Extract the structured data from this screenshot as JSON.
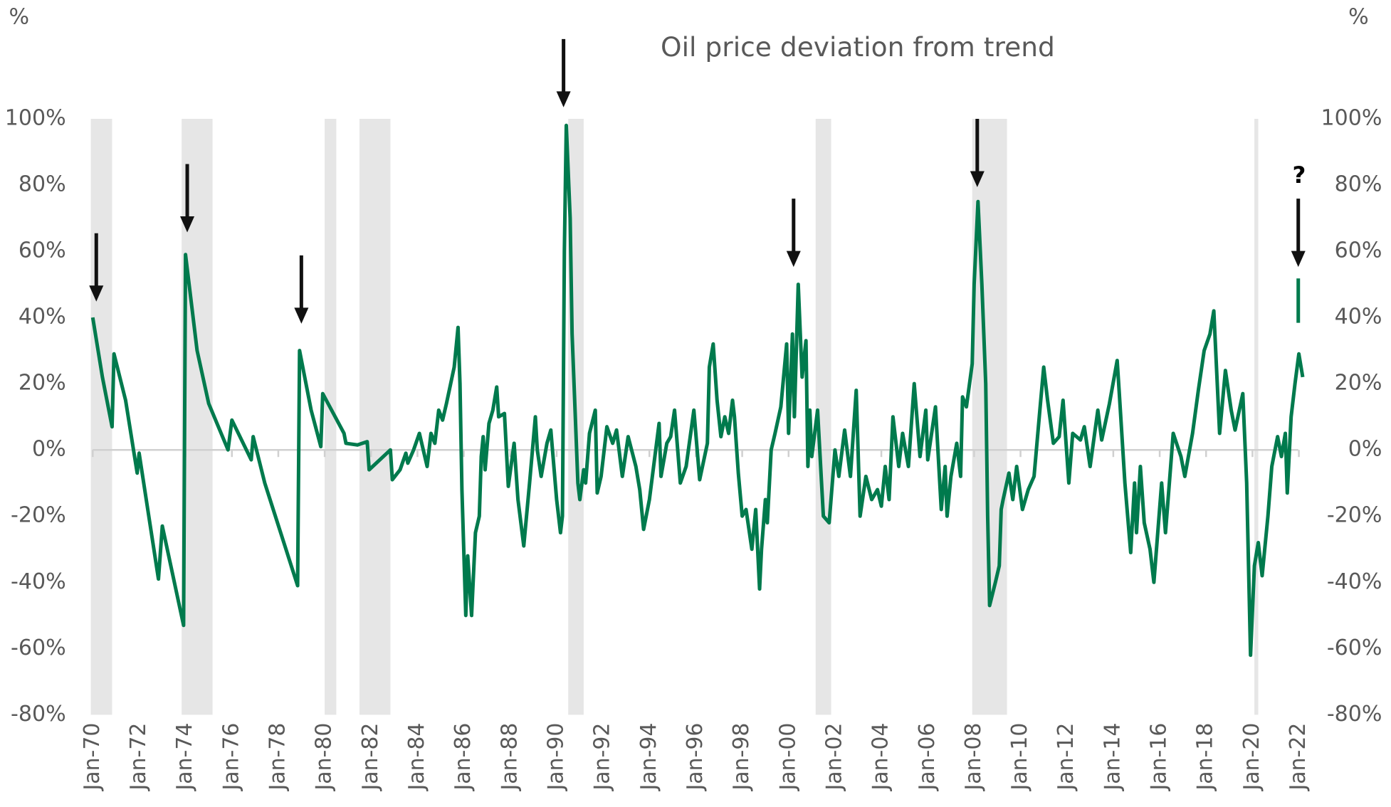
{
  "chart_data": {
    "type": "line",
    "title": "Oil price deviation from trend",
    "y_label": "%",
    "y2_label": "%",
    "annotations": [
      "?"
    ],
    "xlim": [
      "1970-01",
      "2022-03"
    ],
    "ylim": [
      -80,
      100
    ],
    "yticks": [
      {
        "value": -80,
        "label": "-80%"
      },
      {
        "value": -60,
        "label": "-60%"
      },
      {
        "value": -40,
        "label": "-40%"
      },
      {
        "value": -20,
        "label": "-20%"
      },
      {
        "value": 0,
        "label": "0%"
      },
      {
        "value": 20,
        "label": "20%"
      },
      {
        "value": 40,
        "label": "40%"
      },
      {
        "value": 60,
        "label": "60%"
      },
      {
        "value": 80,
        "label": "80%"
      },
      {
        "value": 100,
        "label": "100%"
      }
    ],
    "xticks": [
      {
        "value": "1970-01",
        "label": "Jan-70"
      },
      {
        "value": "1972-01",
        "label": "Jan-72"
      },
      {
        "value": "1974-01",
        "label": "Jan-74"
      },
      {
        "value": "1976-01",
        "label": "Jan-76"
      },
      {
        "value": "1978-01",
        "label": "Jan-78"
      },
      {
        "value": "1980-01",
        "label": "Jan-80"
      },
      {
        "value": "1982-01",
        "label": "Jan-82"
      },
      {
        "value": "1984-01",
        "label": "Jan-84"
      },
      {
        "value": "1986-01",
        "label": "Jan-86"
      },
      {
        "value": "1988-01",
        "label": "Jan-88"
      },
      {
        "value": "1990-01",
        "label": "Jan-90"
      },
      {
        "value": "1992-01",
        "label": "Jan-92"
      },
      {
        "value": "1994-01",
        "label": "Jan-94"
      },
      {
        "value": "1996-01",
        "label": "Jan-96"
      },
      {
        "value": "1998-01",
        "label": "Jan-98"
      },
      {
        "value": "2000-01",
        "label": "Jan-00"
      },
      {
        "value": "2002-01",
        "label": "Jan-02"
      },
      {
        "value": "2004-01",
        "label": "Jan-04"
      },
      {
        "value": "2006-01",
        "label": "Jan-06"
      },
      {
        "value": "2008-01",
        "label": "Jan-08"
      },
      {
        "value": "2010-01",
        "label": "Jan-10"
      },
      {
        "value": "2012-01",
        "label": "Jan-12"
      },
      {
        "value": "2014-01",
        "label": "Jan-14"
      },
      {
        "value": "2016-01",
        "label": "Jan-16"
      },
      {
        "value": "2018-01",
        "label": "Jan-18"
      },
      {
        "value": "2020-01",
        "label": "Jan-20"
      },
      {
        "value": "2022-01",
        "label": "Jan-22"
      }
    ],
    "recessions": [
      [
        "1969-12",
        "1970-11"
      ],
      [
        "1973-11",
        "1975-03"
      ],
      [
        "1980-01",
        "1980-07"
      ],
      [
        "1981-07",
        "1982-11"
      ],
      [
        "1990-07",
        "1991-03"
      ],
      [
        "2001-03",
        "2001-11"
      ],
      [
        "2007-12",
        "2009-06"
      ],
      [
        "2020-02",
        "2020-04"
      ]
    ],
    "recession_color": "#e6e6e6",
    "series": [
      {
        "color": "#007a4d",
        "x": [
          "1970-01",
          "1970-06",
          "1970-11",
          "1970-12",
          "1971-06",
          "1971-12",
          "1972-01",
          "1972-11",
          "1973-01",
          "1973-12",
          "1974-01",
          "1974-07",
          "1975-01",
          "1975-11",
          "1976-01",
          "1976-11",
          "1976-12",
          "1977-06",
          "1978-11",
          "1978-12",
          "1979-06",
          "1979-11",
          "1979-12",
          "1980-11",
          "1980-12",
          "1981-06",
          "1981-11",
          "1981-12",
          "1982-11",
          "1982-12",
          "1983-04",
          "1983-07",
          "1983-08",
          "1983-11",
          "1984-02",
          "1984-06",
          "1984-08",
          "1984-10",
          "1984-12",
          "1985-02",
          "1985-04",
          "1985-08",
          "1985-10",
          "1985-11",
          "1985-12",
          "1986-02",
          "1986-03",
          "1986-05",
          "1986-07",
          "1986-09",
          "1986-10",
          "1986-11",
          "1986-12",
          "1987-02",
          "1987-04",
          "1987-06",
          "1987-07",
          "1987-10",
          "1987-12",
          "1988-03",
          "1988-05",
          "1988-08",
          "1988-11",
          "1989-02",
          "1989-03",
          "1989-05",
          "1989-08",
          "1989-10",
          "1990-01",
          "1990-03",
          "1990-04",
          "1990-05",
          "1990-06",
          "1990-08",
          "1990-09",
          "1990-12",
          "1991-01",
          "1991-03",
          "1991-04",
          "1991-06",
          "1991-09",
          "1991-10",
          "1991-12",
          "1992-03",
          "1992-06",
          "1992-08",
          "1992-11",
          "1993-02",
          "1993-06",
          "1993-08",
          "1993-10",
          "1994-01",
          "1994-06",
          "1994-07",
          "1994-10",
          "1994-12",
          "1995-02",
          "1995-05",
          "1995-08",
          "1995-12",
          "1996-03",
          "1996-07",
          "1996-08",
          "1996-10",
          "1996-12",
          "1997-02",
          "1997-04",
          "1997-06",
          "1997-08",
          "1997-09",
          "1997-11",
          "1998-01",
          "1998-03",
          "1998-06",
          "1998-08",
          "1998-10",
          "1998-11",
          "1999-01",
          "1999-02",
          "1999-04",
          "1999-06",
          "1999-09",
          "1999-12",
          "2000-01",
          "2000-03",
          "2000-04",
          "2000-06",
          "2000-08",
          "2000-10",
          "2000-11",
          "2000-12",
          "2001-01",
          "2001-04",
          "2001-07",
          "2001-10",
          "2002-01",
          "2002-03",
          "2002-06",
          "2002-09",
          "2002-12",
          "2003-02",
          "2003-05",
          "2003-08",
          "2003-11",
          "2004-01",
          "2004-03",
          "2004-05",
          "2004-07",
          "2004-10",
          "2004-12",
          "2005-03",
          "2005-06",
          "2005-09",
          "2005-12",
          "2006-01",
          "2006-05",
          "2006-08",
          "2006-10",
          "2006-11",
          "2007-01",
          "2007-04",
          "2007-06",
          "2007-07",
          "2007-09",
          "2007-12",
          "2008-01",
          "2008-03",
          "2008-05",
          "2008-07",
          "2008-08",
          "2008-09",
          "2008-12",
          "2009-02",
          "2009-03",
          "2009-04",
          "2009-07",
          "2009-09",
          "2009-11",
          "2010-02",
          "2010-05",
          "2010-08",
          "2010-11",
          "2011-01",
          "2011-03",
          "2011-06",
          "2011-09",
          "2011-11",
          "2012-02",
          "2012-04",
          "2012-08",
          "2012-10",
          "2013-01",
          "2013-05",
          "2013-07",
          "2013-11",
          "2014-03",
          "2014-04",
          "2014-07",
          "2014-10",
          "2014-12",
          "2015-01",
          "2015-03",
          "2015-05",
          "2015-08",
          "2015-10",
          "2016-02",
          "2016-04",
          "2016-08",
          "2016-12",
          "2017-02",
          "2017-06",
          "2017-09",
          "2017-12",
          "2018-03",
          "2018-05",
          "2018-08",
          "2018-11",
          "2019-02",
          "2019-04",
          "2019-08",
          "2019-10",
          "2019-12",
          "2020-02",
          "2020-04",
          "2020-06",
          "2020-09",
          "2020-11",
          "2021-02",
          "2021-04",
          "2021-06",
          "2021-07",
          "2021-09",
          "2021-11",
          "2022-01",
          "2022-03"
        ],
        "values": [
          40,
          22,
          7,
          29,
          15,
          -7,
          -1,
          -39,
          -23,
          -53,
          59,
          30,
          14,
          0,
          9,
          -3,
          4,
          -10,
          -41,
          30,
          12,
          1,
          17,
          5,
          2,
          1.5,
          2.5,
          -6,
          0,
          -9,
          -6,
          -1,
          -4,
          0,
          5,
          -5,
          5,
          2,
          12,
          9,
          14,
          25,
          37,
          20,
          -12,
          -50,
          -32,
          -50,
          -25,
          -20,
          -2,
          4,
          -6,
          8,
          12,
          19,
          10,
          11,
          -11,
          2,
          -15,
          -29,
          -10,
          10,
          0,
          -8,
          2,
          6,
          -15,
          -25,
          -20,
          60,
          98,
          70,
          35,
          -10,
          -15,
          -6,
          -10,
          5,
          12,
          -13,
          -8,
          7,
          2,
          6,
          -8,
          4,
          -5,
          -12,
          -24,
          -15,
          8,
          -8,
          2,
          4,
          12,
          -10,
          -5,
          12,
          -9,
          2,
          25,
          32,
          15,
          4,
          10,
          5,
          15,
          10,
          -7,
          -20,
          -18,
          -30,
          -18,
          -42,
          -30,
          -15,
          -22,
          0,
          5,
          13,
          32,
          5,
          35,
          10,
          50,
          22,
          33,
          -5,
          12,
          -2,
          12,
          -20,
          -22,
          0,
          -8,
          6,
          -8,
          18,
          -20,
          -8,
          -15,
          -12,
          -17,
          -5,
          -15,
          10,
          -5,
          5,
          -5,
          20,
          -2,
          12,
          -3,
          13,
          -18,
          -5,
          -20,
          -8,
          2,
          -8,
          16,
          13,
          26,
          50,
          75,
          50,
          20,
          -20,
          -47,
          -40,
          -35,
          -18,
          -15,
          -7,
          -15,
          -5,
          -18,
          -12,
          -8,
          12,
          25,
          15,
          2,
          4,
          15,
          -10,
          5,
          3,
          7,
          -5,
          12,
          3,
          14,
          27,
          18,
          -10,
          -31,
          -10,
          -25,
          -5,
          -22,
          -30,
          -40,
          -10,
          -25,
          5,
          -2,
          -8,
          5,
          18,
          30,
          35,
          42,
          5,
          24,
          12,
          6,
          17,
          -10,
          -62,
          -35,
          -28,
          -38,
          -20,
          -5,
          4,
          -2,
          5,
          -13,
          10,
          20,
          29,
          22
        ]
      }
    ]
  }
}
